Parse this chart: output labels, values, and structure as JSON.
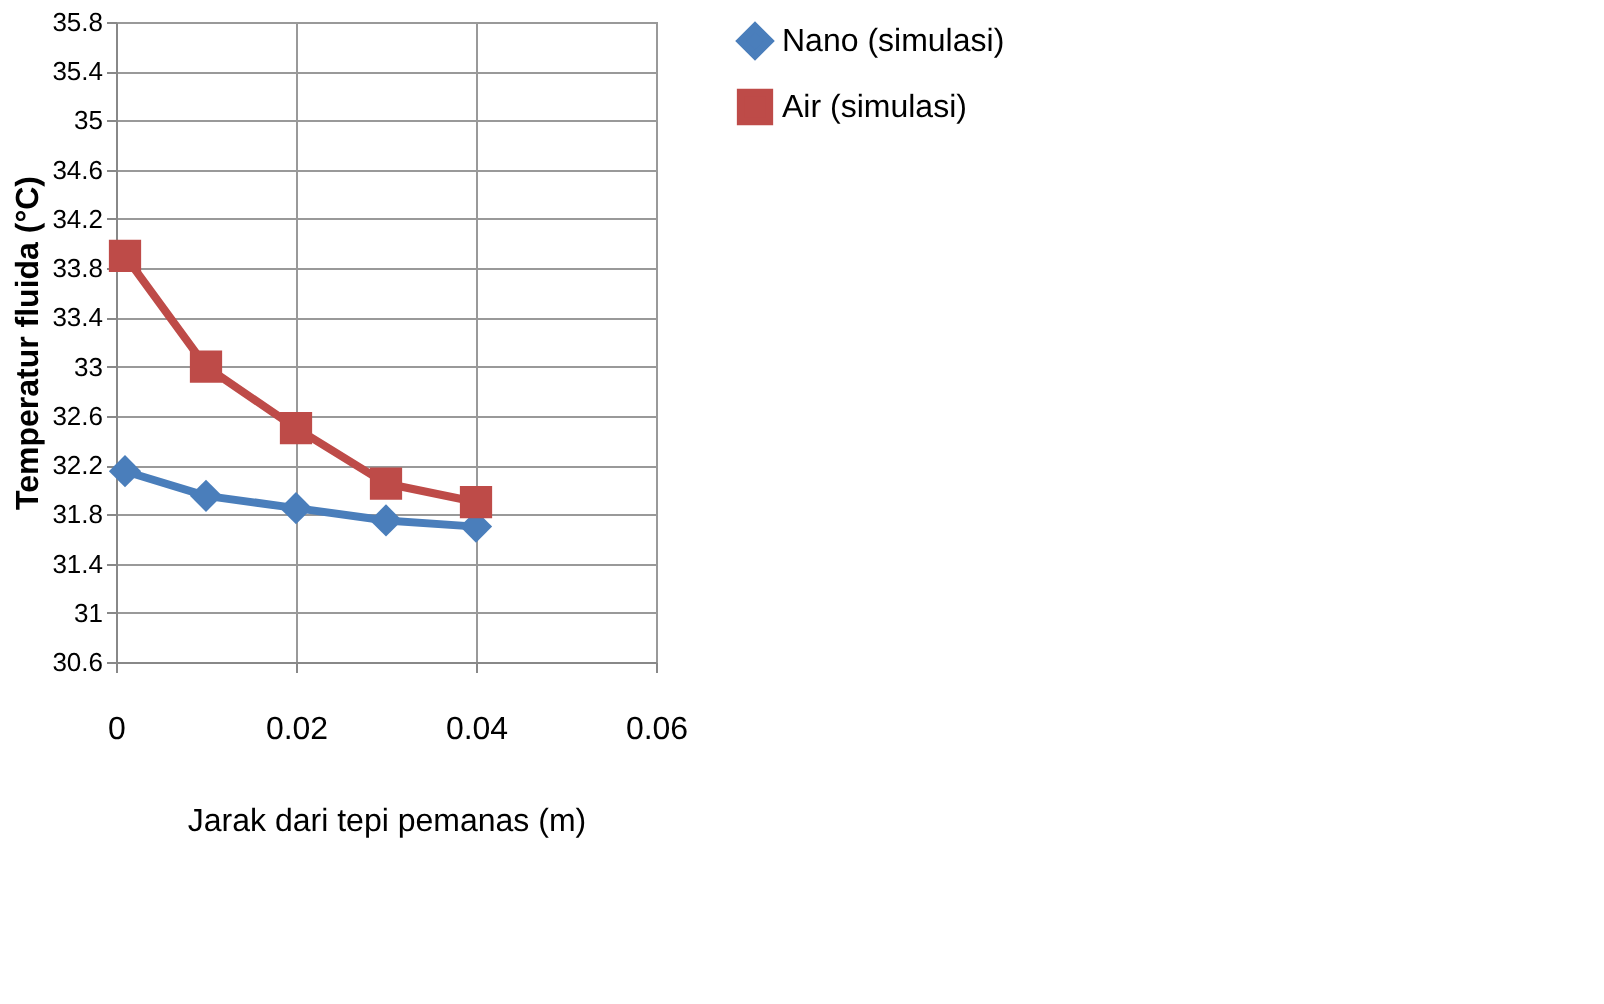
{
  "chart_data": {
    "type": "line",
    "xlabel": "Jarak dari tepi pemanas (m)",
    "ylabel": "Temperatur fluida (°C)",
    "x": [
      0.001,
      0.01,
      0.02,
      0.03,
      0.04
    ],
    "series": [
      {
        "name": "Nano (simulasi)",
        "color": "#4a7ebb",
        "marker": "diamond",
        "values": [
          32.15,
          31.95,
          31.85,
          31.75,
          31.7
        ]
      },
      {
        "name": "Air (simulasi)",
        "color": "#be4b48",
        "marker": "square",
        "values": [
          33.9,
          33.0,
          32.5,
          32.05,
          31.9
        ]
      }
    ],
    "xlim": [
      0,
      0.06
    ],
    "xticks": [
      0,
      0.02,
      0.04,
      0.06
    ],
    "ylim": [
      30.6,
      35.8
    ],
    "yticks": [
      30.6,
      31,
      31.4,
      31.8,
      32.2,
      32.6,
      33,
      33.4,
      33.8,
      34.2,
      34.6,
      35,
      35.4,
      35.8
    ],
    "grid": true,
    "legend": "right",
    "line_style": "solid"
  }
}
